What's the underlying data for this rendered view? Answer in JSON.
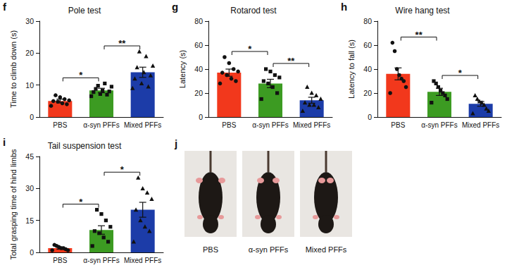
{
  "chart_data": [
    {
      "type": "bar",
      "panel": "f",
      "title": "Pole test",
      "y_label": "Time to climb down (s)",
      "categories": [
        "PBS",
        "α-syn PFFs",
        "Mixed PFFs"
      ],
      "values": [
        5,
        8.3,
        14
      ],
      "errors": [
        0.6,
        0.7,
        1.6
      ],
      "colors": [
        "#f2381c",
        "#3c9b22",
        "#1c3ca8"
      ],
      "points": [
        {
          "marker": "circle",
          "values": [
            3.5,
            4,
            4.3,
            4.8,
            5,
            5.2,
            5.6,
            6.2,
            6.8
          ]
        },
        {
          "marker": "square",
          "values": [
            6.5,
            7,
            7.2,
            7.8,
            8,
            8.3,
            8.8,
            9.5,
            10.5,
            9.8
          ]
        },
        {
          "marker": "triangle",
          "values": [
            9,
            9.5,
            10.5,
            12,
            13,
            14,
            15.5,
            16,
            19,
            20.5
          ]
        }
      ],
      "annotations": [
        {
          "from": "PBS",
          "to": "α-syn PFFs",
          "text": "*"
        },
        {
          "from": "α-syn PFFs",
          "to": "Mixed PFFs",
          "text": "**"
        }
      ],
      "ylim": [
        0,
        30
      ],
      "yticks": [
        0,
        10,
        20,
        30
      ],
      "grid": false
    },
    {
      "type": "bar",
      "panel": "g",
      "title": "Rotarod test",
      "y_label": "Latency (s)",
      "categories": [
        "PBS",
        "α-syn PFFs",
        "Mixed PFFs"
      ],
      "values": [
        37,
        28,
        14
      ],
      "errors": [
        3,
        3.5,
        2.5
      ],
      "colors": [
        "#f2381c",
        "#3c9b22",
        "#1c3ca8"
      ],
      "points": [
        {
          "marker": "circle",
          "values": [
            28,
            30,
            32,
            35,
            37,
            38,
            40,
            45,
            50
          ]
        },
        {
          "marker": "square",
          "values": [
            15,
            20,
            25,
            28,
            30,
            33,
            35,
            38,
            40
          ]
        },
        {
          "marker": "triangle",
          "values": [
            5,
            8,
            10,
            10,
            12,
            15,
            18,
            20,
            25
          ]
        }
      ],
      "annotations": [
        {
          "from": "PBS",
          "to": "α-syn PFFs",
          "text": "*"
        },
        {
          "from": "α-syn PFFs",
          "to": "Mixed PFFs",
          "text": "**"
        }
      ],
      "ylim": [
        0,
        80
      ],
      "yticks": [
        0,
        20,
        40,
        60,
        80
      ],
      "grid": false
    },
    {
      "type": "bar",
      "panel": "h",
      "title": "Wire hang test",
      "y_label": "Latency to fall (s)",
      "categories": [
        "PBS",
        "α-syn PFFs",
        "Mixed PFFs"
      ],
      "values": [
        36,
        21,
        11
      ],
      "errors": [
        5,
        3,
        2
      ],
      "colors": [
        "#f2381c",
        "#3c9b22",
        "#1c3ca8"
      ],
      "points": [
        {
          "marker": "circle",
          "values": [
            20,
            25,
            30,
            32,
            35,
            40,
            55,
            62
          ]
        },
        {
          "marker": "square",
          "values": [
            12,
            15,
            18,
            20,
            22,
            25,
            28,
            30
          ]
        },
        {
          "marker": "triangle",
          "values": [
            3,
            5,
            7,
            10,
            12,
            13,
            15,
            18
          ]
        }
      ],
      "annotations": [
        {
          "from": "PBS",
          "to": "α-syn PFFs",
          "text": "**"
        },
        {
          "from": "α-syn PFFs",
          "to": "Mixed PFFs",
          "text": "*"
        }
      ],
      "ylim": [
        0,
        80
      ],
      "yticks": [
        0,
        20,
        40,
        60,
        80
      ],
      "grid": false
    },
    {
      "type": "bar",
      "panel": "i",
      "title": "Tail suspension test",
      "y_label": "Total grasping time of hind limbs",
      "categories": [
        "PBS",
        "α-syn PFFs",
        "Mixed PFFs"
      ],
      "values": [
        2,
        10.5,
        20
      ],
      "errors": [
        0.5,
        2,
        3.5
      ],
      "colors": [
        "#f2381c",
        "#3c9b22",
        "#1c3ca8"
      ],
      "points": [
        {
          "marker": "circle",
          "values": [
            1,
            1,
            1.5,
            2,
            2,
            2.5,
            3,
            3.5
          ]
        },
        {
          "marker": "square",
          "values": [
            3,
            5,
            7,
            9,
            10,
            12,
            15,
            18,
            20
          ]
        },
        {
          "marker": "triangle",
          "values": [
            5,
            10,
            12,
            15,
            20,
            25,
            28,
            30,
            35
          ]
        }
      ],
      "annotations": [
        {
          "from": "PBS",
          "to": "α-syn PFFs",
          "text": "*"
        },
        {
          "from": "α-syn PFFs",
          "to": "Mixed PFFs",
          "text": "*"
        }
      ],
      "ylim": [
        0,
        45
      ],
      "yticks": [
        0,
        15,
        30,
        45
      ],
      "grid": false
    }
  ],
  "image_panel": {
    "panel": "j",
    "captions": [
      "PBS",
      "α-syn PFFs",
      "Mixed PFFs"
    ]
  }
}
